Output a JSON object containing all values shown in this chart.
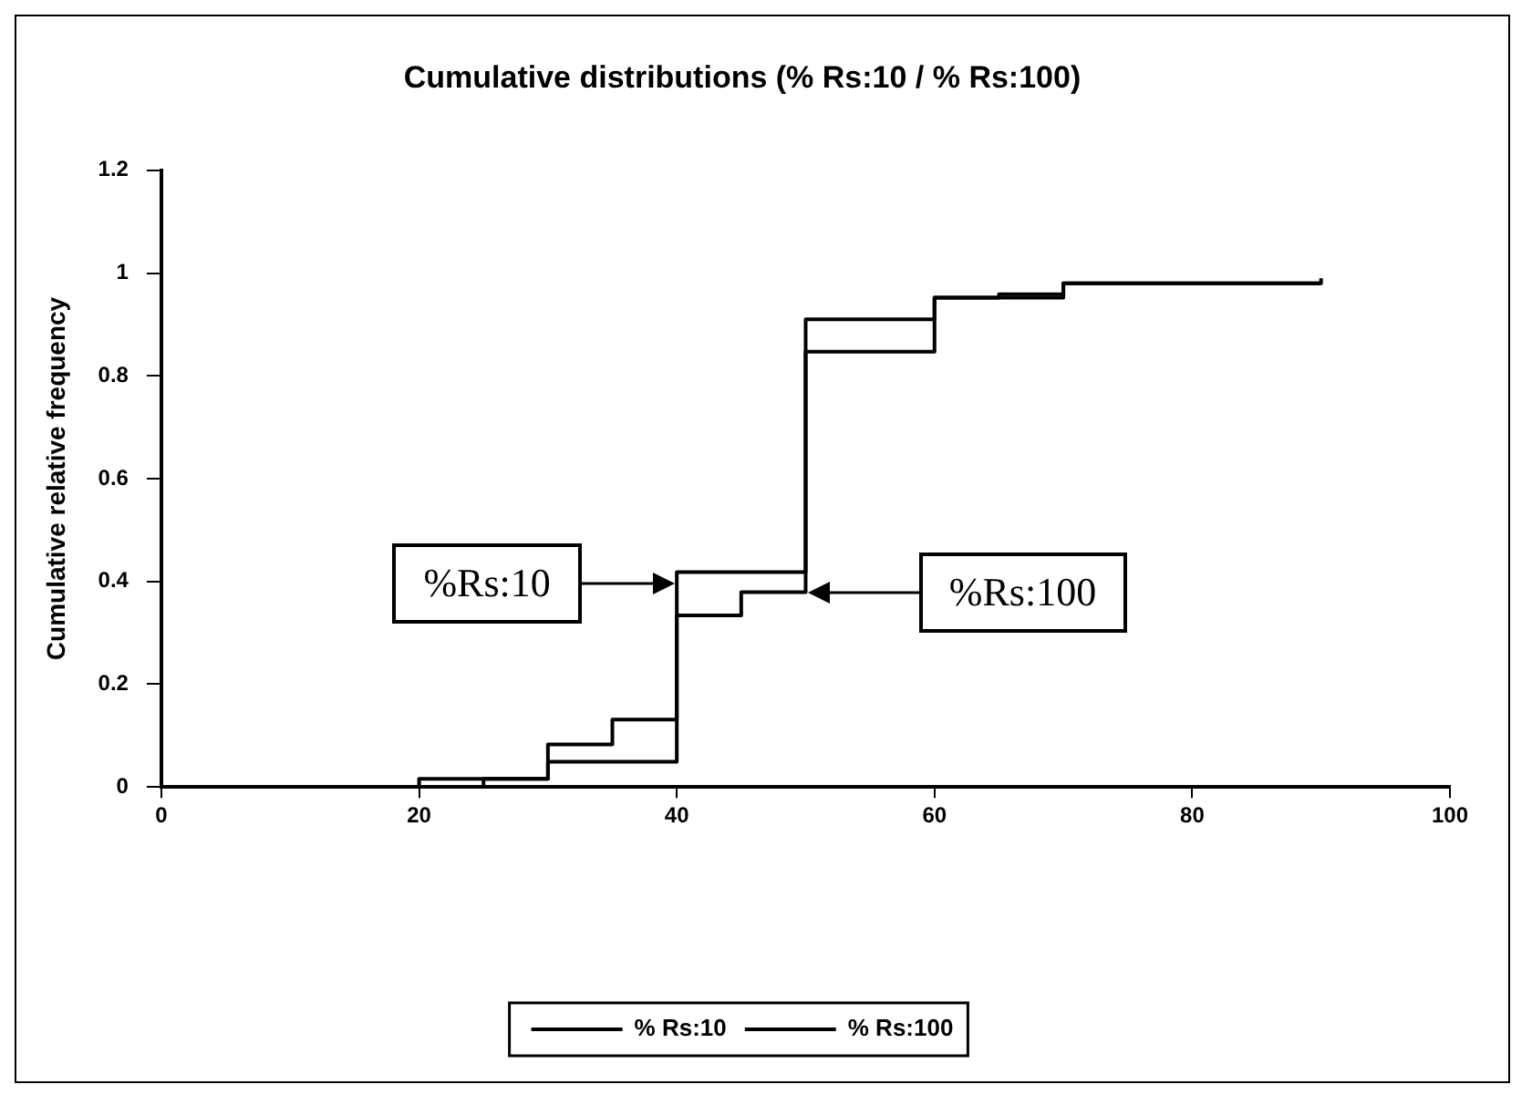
{
  "chart_data": {
    "type": "step",
    "title": "Cumulative distributions (% Rs:10 / % Rs:100)",
    "ylabel": "Cumulative relative frequency",
    "xlim": [
      0,
      100
    ],
    "xticks": [
      0,
      20,
      40,
      60,
      80,
      100
    ],
    "ylim": [
      0,
      1.2
    ],
    "yticks": [
      0,
      0.2,
      0.4,
      0.6,
      0.8,
      1,
      1.2
    ],
    "grid": false,
    "legend": "bottom",
    "marker": "none",
    "series": [
      {
        "name": "% Rs:10",
        "color": "#000000",
        "x": [
          0,
          20,
          30,
          40,
          50,
          60,
          70,
          90,
          90
        ],
        "values": [
          0,
          0.016,
          0.049,
          0.418,
          0.91,
          0.952,
          0.98,
          0.98,
          0.99
        ]
      },
      {
        "name": "% Rs:100",
        "color": "#000000",
        "x": [
          0,
          25,
          30,
          35,
          40,
          45,
          50,
          60,
          65,
          70,
          90
        ],
        "values": [
          0,
          0.016,
          0.083,
          0.131,
          0.334,
          0.379,
          0.847,
          0.952,
          0.959,
          0.98,
          0.98
        ]
      }
    ],
    "annotations": [
      "%Rs:10",
      "%Rs:100"
    ]
  }
}
